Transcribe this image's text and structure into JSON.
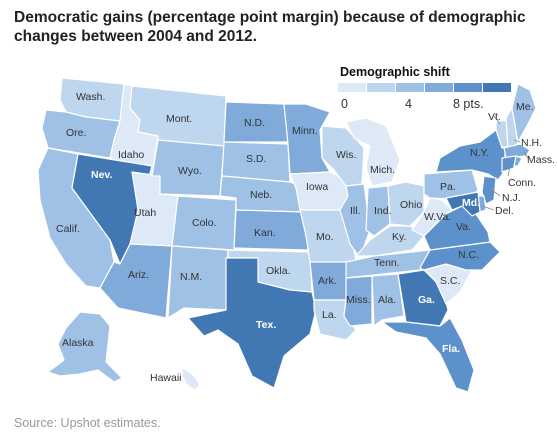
{
  "title": "Democratic gains (percentage point margin) because of demographic changes between 2004 and 2012.",
  "source": "Source: Upshot estimates.",
  "legend": {
    "title": "Demographic shift",
    "ticks": [
      "0",
      "4",
      "8 pts."
    ],
    "colors": [
      "#dde9f7",
      "#bed6ee",
      "#9fc1e5",
      "#7faad9",
      "#5d91cb",
      "#4178b4"
    ]
  },
  "states": [
    {
      "id": "wa",
      "label": "Wash.",
      "level": 1
    },
    {
      "id": "or",
      "label": "Ore.",
      "level": 2
    },
    {
      "id": "ca",
      "label": "Calif.",
      "level": 2
    },
    {
      "id": "id",
      "label": "Idaho",
      "level": 0
    },
    {
      "id": "nv",
      "label": "Nev.",
      "level": 5
    },
    {
      "id": "ut",
      "label": "Utah",
      "level": 0
    },
    {
      "id": "az",
      "label": "Ariz.",
      "level": 3
    },
    {
      "id": "mt",
      "label": "Mont.",
      "level": 1
    },
    {
      "id": "wy",
      "label": "Wyo.",
      "level": 2
    },
    {
      "id": "co",
      "label": "Colo.",
      "level": 2
    },
    {
      "id": "nm",
      "label": "N.M.",
      "level": 2
    },
    {
      "id": "nd",
      "label": "N.D.",
      "level": 3
    },
    {
      "id": "sd",
      "label": "S.D.",
      "level": 2
    },
    {
      "id": "ne",
      "label": "Neb.",
      "level": 2
    },
    {
      "id": "ks",
      "label": "Kan.",
      "level": 3
    },
    {
      "id": "ok",
      "label": "Okla.",
      "level": 1
    },
    {
      "id": "tx",
      "label": "Tex.",
      "level": 5
    },
    {
      "id": "mn",
      "label": "Minn.",
      "level": 3
    },
    {
      "id": "ia",
      "label": "Iowa",
      "level": 0
    },
    {
      "id": "mo",
      "label": "Mo.",
      "level": 1
    },
    {
      "id": "ar",
      "label": "Ark.",
      "level": 3
    },
    {
      "id": "la",
      "label": "La.",
      "level": 1
    },
    {
      "id": "wi",
      "label": "Wis.",
      "level": 1
    },
    {
      "id": "il",
      "label": "Ill.",
      "level": 2
    },
    {
      "id": "mi",
      "label": "Mich.",
      "level": 0
    },
    {
      "id": "in",
      "label": "Ind.",
      "level": 2
    },
    {
      "id": "oh",
      "label": "Ohio",
      "level": 1
    },
    {
      "id": "ky",
      "label": "Ky.",
      "level": 1
    },
    {
      "id": "tn",
      "label": "Tenn.",
      "level": 2
    },
    {
      "id": "ms",
      "label": "Miss.",
      "level": 3
    },
    {
      "id": "al",
      "label": "Ala.",
      "level": 2
    },
    {
      "id": "ga",
      "label": "Ga.",
      "level": 5
    },
    {
      "id": "fl",
      "label": "Fla.",
      "level": 4
    },
    {
      "id": "sc",
      "label": "S.C.",
      "level": 0
    },
    {
      "id": "nc",
      "label": "N.C.",
      "level": 4
    },
    {
      "id": "va",
      "label": "Va.",
      "level": 4
    },
    {
      "id": "wv",
      "label": "W.Va.",
      "level": 0
    },
    {
      "id": "pa",
      "label": "Pa.",
      "level": 2
    },
    {
      "id": "ny",
      "label": "N.Y.",
      "level": 4
    },
    {
      "id": "vt",
      "label": "Vt.",
      "level": 1
    },
    {
      "id": "nh",
      "label": "N.H.",
      "level": 1
    },
    {
      "id": "me",
      "label": "Me.",
      "level": 2
    },
    {
      "id": "ma",
      "label": "Mass.",
      "level": 3
    },
    {
      "id": "ct",
      "label": "Conn.",
      "level": 4
    },
    {
      "id": "ri",
      "label": "",
      "level": 3
    },
    {
      "id": "nj",
      "label": "N.J.",
      "level": 4
    },
    {
      "id": "de",
      "label": "Del.",
      "level": 3
    },
    {
      "id": "md",
      "label": "Md.",
      "level": 5
    },
    {
      "id": "ak",
      "label": "Alaska",
      "level": 2
    },
    {
      "id": "hi",
      "label": "Hawaii",
      "level": 0
    }
  ]
}
